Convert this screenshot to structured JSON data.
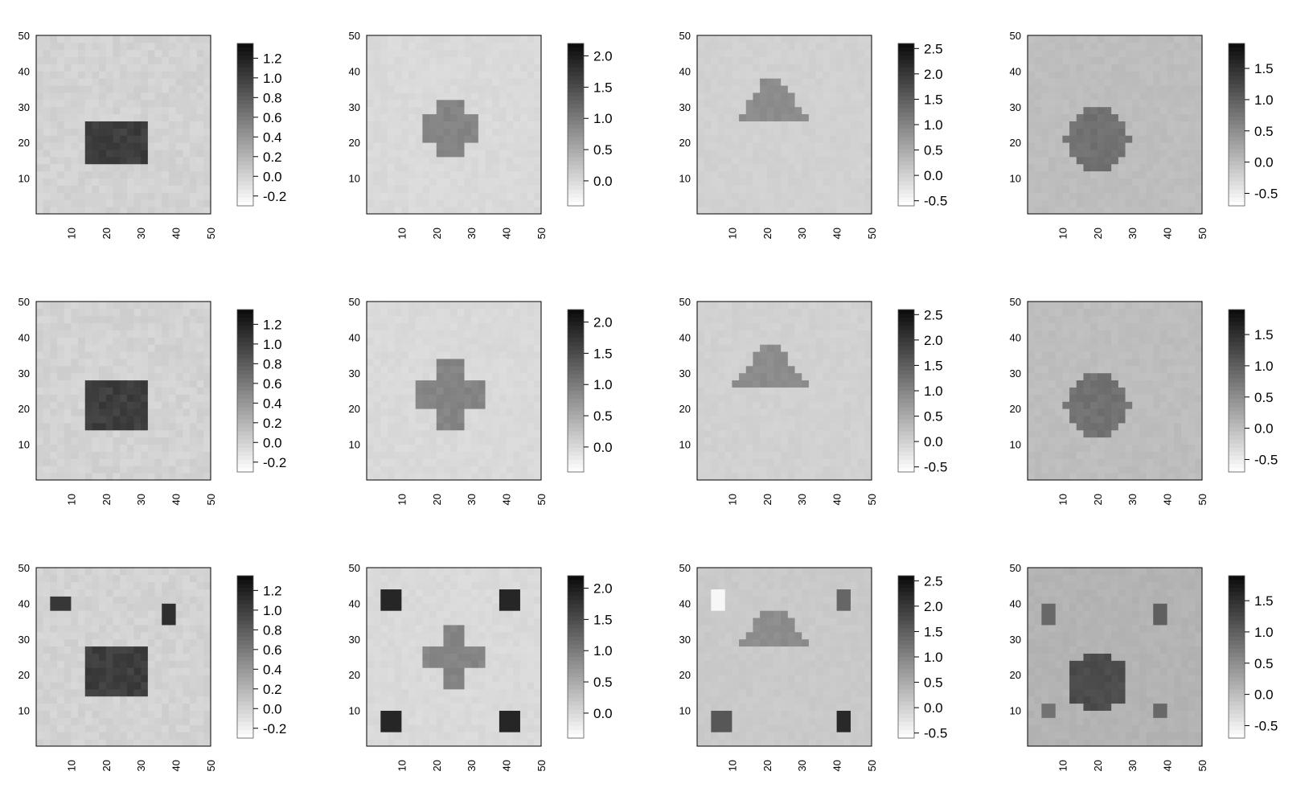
{
  "chart_data": [
    {
      "type": "heatmap",
      "shape": "square",
      "extra": "none",
      "title": "",
      "xlabel": "",
      "ylabel": "",
      "x_ticks": [
        "10",
        "20",
        "30",
        "40",
        "50"
      ],
      "y_ticks": [
        "10",
        "20",
        "30",
        "40",
        "50"
      ],
      "xlim": [
        0,
        50
      ],
      "ylim": [
        0,
        50
      ],
      "colorbar": {
        "ticks": [
          "1.2",
          "1.0",
          "0.8",
          "0.6",
          "0.4",
          "0.2",
          "0.0",
          "-0.2"
        ],
        "range": [
          -0.3,
          1.35
        ]
      },
      "background_value": 0.0,
      "shape_value": 1.0,
      "shape_bounds": {
        "x": [
          15,
          31
        ],
        "y": [
          14,
          26
        ]
      }
    },
    {
      "type": "heatmap",
      "shape": "cross",
      "extra": "none",
      "title": "",
      "xlabel": "",
      "ylabel": "",
      "x_ticks": [
        "10",
        "20",
        "30",
        "40",
        "50"
      ],
      "y_ticks": [
        "10",
        "20",
        "30",
        "40",
        "50"
      ],
      "xlim": [
        0,
        50
      ],
      "ylim": [
        0,
        50
      ],
      "colorbar": {
        "ticks": [
          "2.0",
          "1.5",
          "1.0",
          "0.5",
          "0.0"
        ],
        "range": [
          -0.4,
          2.2
        ]
      },
      "background_value": 0.0,
      "shape_value": 0.9,
      "shape_bounds": {
        "x": [
          16,
          32
        ],
        "y": [
          16,
          32
        ]
      }
    },
    {
      "type": "heatmap",
      "shape": "triangle",
      "extra": "none",
      "title": "",
      "xlabel": "",
      "ylabel": "",
      "x_ticks": [
        "10",
        "20",
        "30",
        "40",
        "50"
      ],
      "y_ticks": [
        "10",
        "20",
        "30",
        "40",
        "50"
      ],
      "xlim": [
        0,
        50
      ],
      "ylim": [
        0,
        50
      ],
      "colorbar": {
        "ticks": [
          "2.5",
          "2.0",
          "1.5",
          "1.0",
          "0.5",
          "0.0",
          "-0.5"
        ],
        "range": [
          -0.6,
          2.6
        ]
      },
      "background_value": 0.0,
      "shape_value": 0.9,
      "shape_bounds": {
        "x": [
          12,
          31
        ],
        "y": [
          27,
          37
        ]
      }
    },
    {
      "type": "heatmap",
      "shape": "circle",
      "extra": "none",
      "title": "",
      "xlabel": "",
      "ylabel": "",
      "x_ticks": [
        "10",
        "20",
        "30",
        "40",
        "50"
      ],
      "y_ticks": [
        "10",
        "20",
        "30",
        "40",
        "50"
      ],
      "xlim": [
        0,
        50
      ],
      "ylim": [
        0,
        50
      ],
      "colorbar": {
        "ticks": [
          "1.5",
          "1.0",
          "0.5",
          "0.0",
          "-0.5"
        ],
        "range": [
          -0.7,
          1.9
        ]
      },
      "background_value": 0.0,
      "shape_value": 0.8,
      "shape_bounds": {
        "x": [
          11,
          29
        ],
        "y": [
          12,
          30
        ]
      }
    },
    {
      "type": "heatmap",
      "shape": "square",
      "extra": "none",
      "title": "",
      "xlabel": "",
      "ylabel": "",
      "x_ticks": [
        "10",
        "20",
        "30",
        "40",
        "50"
      ],
      "y_ticks": [
        "10",
        "20",
        "30",
        "40",
        "50"
      ],
      "xlim": [
        0,
        50
      ],
      "ylim": [
        0,
        50
      ],
      "colorbar": {
        "ticks": [
          "1.2",
          "1.0",
          "0.8",
          "0.6",
          "0.4",
          "0.2",
          "0.0",
          "-0.2"
        ],
        "range": [
          -0.3,
          1.35
        ]
      },
      "background_value": 0.0,
      "shape_value": 1.0,
      "shape_bounds": {
        "x": [
          15,
          31
        ],
        "y": [
          14,
          28
        ]
      }
    },
    {
      "type": "heatmap",
      "shape": "cross",
      "extra": "none",
      "title": "",
      "xlabel": "",
      "ylabel": "",
      "x_ticks": [
        "10",
        "20",
        "30",
        "40",
        "50"
      ],
      "y_ticks": [
        "10",
        "20",
        "30",
        "40",
        "50"
      ],
      "xlim": [
        0,
        50
      ],
      "ylim": [
        0,
        50
      ],
      "colorbar": {
        "ticks": [
          "2.0",
          "1.5",
          "1.0",
          "0.5",
          "0.0"
        ],
        "range": [
          -0.4,
          2.2
        ]
      },
      "background_value": 0.0,
      "shape_value": 0.9,
      "shape_bounds": {
        "x": [
          15,
          33
        ],
        "y": [
          15,
          33
        ]
      }
    },
    {
      "type": "heatmap",
      "shape": "triangle",
      "extra": "none",
      "title": "",
      "xlabel": "",
      "ylabel": "",
      "x_ticks": [
        "10",
        "20",
        "30",
        "40",
        "50"
      ],
      "y_ticks": [
        "10",
        "20",
        "30",
        "40",
        "50"
      ],
      "xlim": [
        0,
        50
      ],
      "ylim": [
        0,
        50
      ],
      "colorbar": {
        "ticks": [
          "2.5",
          "2.0",
          "1.5",
          "1.0",
          "0.5",
          "0.0",
          "-0.5"
        ],
        "range": [
          -0.6,
          2.6
        ]
      },
      "background_value": 0.0,
      "shape_value": 0.9,
      "shape_bounds": {
        "x": [
          11,
          31
        ],
        "y": [
          27,
          37
        ]
      }
    },
    {
      "type": "heatmap",
      "shape": "circle",
      "extra": "none",
      "title": "",
      "xlabel": "",
      "ylabel": "",
      "x_ticks": [
        "10",
        "20",
        "30",
        "40",
        "50"
      ],
      "y_ticks": [
        "10",
        "20",
        "30",
        "40",
        "50"
      ],
      "xlim": [
        0,
        50
      ],
      "ylim": [
        0,
        50
      ],
      "colorbar": {
        "ticks": [
          "1.5",
          "1.0",
          "0.5",
          "0.0",
          "-0.5"
        ],
        "range": [
          -0.7,
          1.9
        ]
      },
      "background_value": 0.0,
      "shape_value": 0.8,
      "shape_bounds": {
        "x": [
          11,
          29
        ],
        "y": [
          12,
          30
        ]
      }
    },
    {
      "type": "heatmap",
      "shape": "square",
      "extra": "corner-blocks",
      "title": "",
      "xlabel": "",
      "ylabel": "",
      "x_ticks": [
        "10",
        "20",
        "30",
        "40",
        "50"
      ],
      "y_ticks": [
        "10",
        "20",
        "30",
        "40",
        "50"
      ],
      "xlim": [
        0,
        50
      ],
      "ylim": [
        0,
        50
      ],
      "colorbar": {
        "ticks": [
          "1.2",
          "1.0",
          "0.8",
          "0.6",
          "0.4",
          "0.2",
          "0.0",
          "-0.2"
        ],
        "range": [
          -0.3,
          1.35
        ]
      },
      "background_value": 0.0,
      "shape_value": 1.0,
      "shape_bounds": {
        "x": [
          15,
          31
        ],
        "y": [
          15,
          28
        ]
      },
      "extra_blocks": [
        {
          "x": [
            5,
            9
          ],
          "y": [
            38,
            42
          ],
          "value": 1.05
        },
        {
          "x": [
            36,
            40
          ],
          "y": [
            35,
            39
          ],
          "value": 1.1
        }
      ]
    },
    {
      "type": "heatmap",
      "shape": "cross",
      "extra": "corner-blocks",
      "title": "",
      "xlabel": "",
      "ylabel": "",
      "x_ticks": [
        "10",
        "20",
        "30",
        "40",
        "50"
      ],
      "y_ticks": [
        "10",
        "20",
        "30",
        "40",
        "50"
      ],
      "xlim": [
        0,
        50
      ],
      "ylim": [
        0,
        50
      ],
      "colorbar": {
        "ticks": [
          "2.0",
          "1.5",
          "1.0",
          "0.5",
          "0.0"
        ],
        "range": [
          -0.4,
          2.2
        ]
      },
      "background_value": 0.0,
      "shape_value": 0.9,
      "shape_bounds": {
        "x": [
          16,
          33
        ],
        "y": [
          16,
          33
        ]
      },
      "extra_blocks": [
        {
          "x": [
            5,
            9
          ],
          "y": [
            39,
            43
          ],
          "value": 1.9
        },
        {
          "x": [
            39,
            43
          ],
          "y": [
            39,
            43
          ],
          "value": 1.9
        },
        {
          "x": [
            5,
            9
          ],
          "y": [
            5,
            9
          ],
          "value": 1.9
        },
        {
          "x": [
            39,
            43
          ],
          "y": [
            5,
            9
          ],
          "value": 1.9
        }
      ]
    },
    {
      "type": "heatmap",
      "shape": "triangle",
      "extra": "corner-blocks",
      "title": "",
      "xlabel": "",
      "ylabel": "",
      "x_ticks": [
        "10",
        "20",
        "30",
        "40",
        "50"
      ],
      "y_ticks": [
        "10",
        "20",
        "30",
        "40",
        "50"
      ],
      "xlim": [
        0,
        50
      ],
      "ylim": [
        0,
        50
      ],
      "colorbar": {
        "ticks": [
          "2.5",
          "2.0",
          "1.5",
          "1.0",
          "0.5",
          "0.0",
          "-0.5"
        ],
        "range": [
          -0.6,
          2.6
        ]
      },
      "background_value": 0.1,
      "shape_value": 0.9,
      "shape_bounds": {
        "x": [
          12,
          32
        ],
        "y": [
          28,
          38
        ]
      },
      "extra_blocks": [
        {
          "x": [
            5,
            8
          ],
          "y": [
            39,
            43
          ],
          "value": -0.5
        },
        {
          "x": [
            40,
            44
          ],
          "y": [
            39,
            43
          ],
          "value": 1.4
        },
        {
          "x": [
            5,
            9
          ],
          "y": [
            5,
            9
          ],
          "value": 1.6
        },
        {
          "x": [
            40,
            44
          ],
          "y": [
            5,
            9
          ],
          "value": 2.2
        }
      ]
    },
    {
      "type": "heatmap",
      "shape": "circle",
      "extra": "corner-blocks",
      "title": "",
      "xlabel": "",
      "ylabel": "",
      "x_ticks": [
        "10",
        "20",
        "30",
        "40",
        "50"
      ],
      "y_ticks": [
        "10",
        "20",
        "30",
        "40",
        "50"
      ],
      "xlim": [
        0,
        50
      ],
      "ylim": [
        0,
        50
      ],
      "colorbar": {
        "ticks": [
          "1.5",
          "1.0",
          "0.5",
          "0.0",
          "-0.5"
        ],
        "range": [
          -0.7,
          1.9
        ]
      },
      "background_value": 0.1,
      "shape_value": 1.2,
      "shape_bounds": {
        "x": [
          11,
          29
        ],
        "y": [
          10,
          26
        ]
      },
      "extra_blocks": [
        {
          "x": [
            4,
            8
          ],
          "y": [
            35,
            39
          ],
          "value": 0.9
        },
        {
          "x": [
            36,
            40
          ],
          "y": [
            35,
            39
          ],
          "value": 1.0
        },
        {
          "x": [
            4,
            8
          ],
          "y": [
            8,
            12
          ],
          "value": 0.8
        },
        {
          "x": [
            36,
            40
          ],
          "y": [
            8,
            12
          ],
          "value": 0.9
        }
      ]
    }
  ]
}
